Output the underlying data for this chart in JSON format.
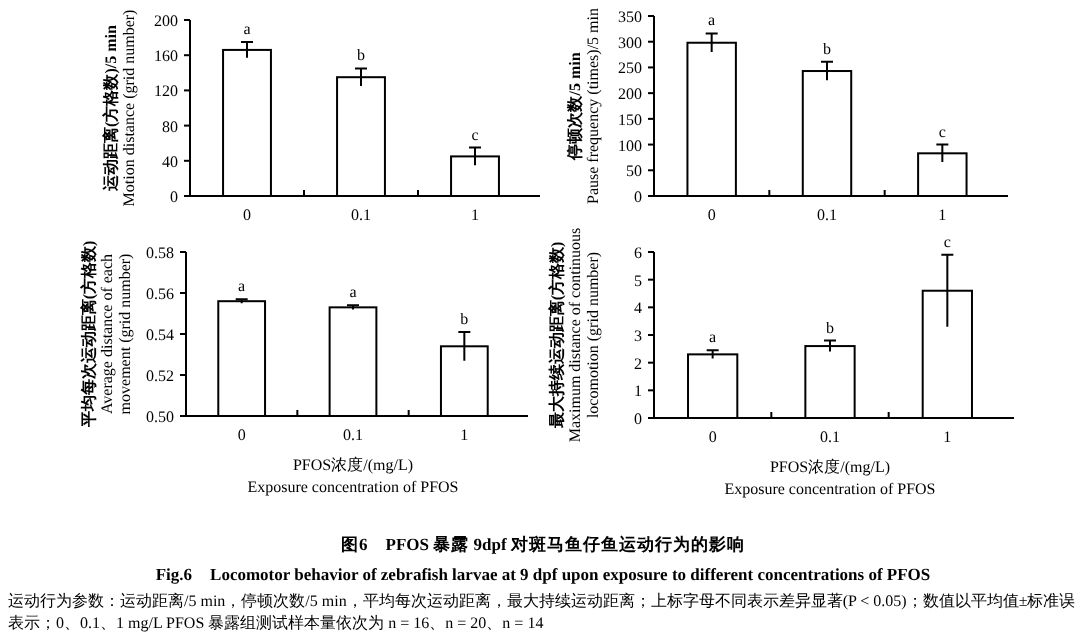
{
  "chart_data": [
    {
      "type": "bar",
      "categories": [
        "0",
        "0.1",
        "1"
      ],
      "values": [
        166,
        135,
        45
      ],
      "errors": [
        9,
        10,
        10
      ],
      "color": "#ffffff",
      "ylim": [
        0,
        200
      ],
      "yticks": [
        0,
        40,
        80,
        120,
        160,
        200
      ],
      "ylabel": "运动距离(方格数)/5 min\nMotion distance (grid number)",
      "annotations": [
        {
          "text": "a",
          "x": "0",
          "y": 175
        },
        {
          "text": "b",
          "x": "0.1",
          "y": 145
        },
        {
          "text": "c",
          "x": "1",
          "y": 55
        }
      ]
    },
    {
      "type": "bar",
      "categories": [
        "0",
        "0.1",
        "1"
      ],
      "values": [
        298,
        243,
        83
      ],
      "errors": [
        18,
        18,
        17
      ],
      "color": "#ffffff",
      "ylim": [
        0,
        350
      ],
      "yticks": [
        0,
        50,
        100,
        150,
        200,
        250,
        300,
        350
      ],
      "ylabel": "停顿次数/5 min\nPause frequency (times)/5 min",
      "annotations": [
        {
          "text": "a",
          "x": "0",
          "y": 316
        },
        {
          "text": "b",
          "x": "0.1",
          "y": 261
        },
        {
          "text": "c",
          "x": "1",
          "y": 100
        }
      ]
    },
    {
      "type": "bar",
      "categories": [
        "0",
        "0.1",
        "1"
      ],
      "values": [
        0.556,
        0.553,
        0.534
      ],
      "errors": [
        0.001,
        0.001,
        0.007
      ],
      "color": "#ffffff",
      "ylim": [
        0.5,
        0.58
      ],
      "yticks": [
        {
          "value": 0.5,
          "label": "0.50"
        },
        {
          "value": 0.52,
          "label": "0.52"
        },
        {
          "value": 0.54,
          "label": "0.54"
        },
        {
          "value": 0.56,
          "label": "0.56"
        },
        {
          "value": 0.58,
          "label": "0.58"
        }
      ],
      "ylabel": "平均每次运动距离(方格数)\nAverage distance of each\nmovement (grid number)",
      "xlabel": "PFOS浓度/(mg/L)\nExposure concentration of PFOS",
      "annotations": [
        {
          "text": "a",
          "x": "0",
          "y": 0.557
        },
        {
          "text": "a",
          "x": "0.1",
          "y": 0.554
        },
        {
          "text": "b",
          "x": "1",
          "y": 0.541
        }
      ]
    },
    {
      "type": "bar",
      "categories": [
        "0",
        "0.1",
        "1"
      ],
      "values": [
        2.3,
        2.6,
        4.6
      ],
      "errors": [
        0.15,
        0.2,
        1.3
      ],
      "color": "#ffffff",
      "ylim": [
        0,
        6
      ],
      "yticks": [
        0,
        1,
        2,
        3,
        4,
        5,
        6
      ],
      "ylabel": "最大持续运动距离(方格数)\nMaximum distance of continuous\nlocomotion (grid number)",
      "xlabel": "PFOS浓度/(mg/L)\nExposure concentration of PFOS",
      "annotations": [
        {
          "text": "a",
          "x": "0",
          "y": 2.45
        },
        {
          "text": "b",
          "x": "0.1",
          "y": 2.8
        },
        {
          "text": "c",
          "x": "1",
          "y": 5.9
        },
        "图6　PFOS 暴露 9dpf 对斑马鱼仔鱼运动行为的影响",
        "Fig.6　Locomotor behavior of zebrafish larvae at 9 dpf upon exposure to different concentrations of PFOS",
        "运动行为参数：运动距离/5 min，停顿次数/5 min，平均每次运动距离，最大持续运动距离；上标字母不同表示差异显著(P < 0.05)；数值以平均值±标准误表示；0、0.1、1 mg/L PFOS 暴露组测试样本量依次为 n = 16、n = 20、n = 14"
      ]
    }
  ]
}
